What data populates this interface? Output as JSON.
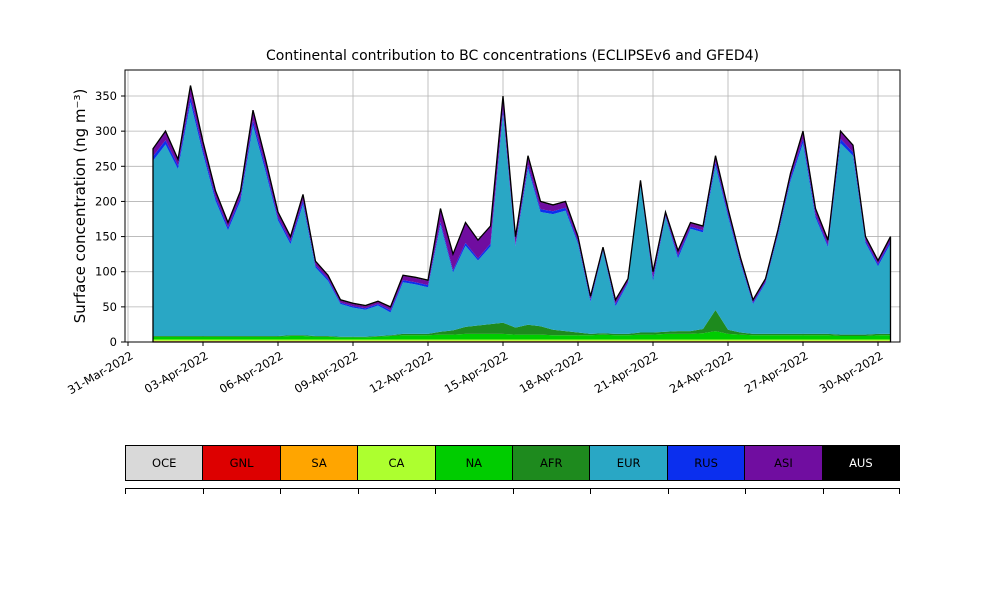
{
  "chart_data": {
    "type": "area",
    "stacked": true,
    "title": "Continental contribution to BC concentrations (ECLIPSEv6 and GFED4)",
    "ylabel": "Surface concentration (ng m⁻³)",
    "xlabel": "",
    "grid": true,
    "grid_color": "#b3b3b3",
    "legend_position": "bottom",
    "x_unit": "days since 31-Mar-2022",
    "x_range": [
      -0.12,
      30.88
    ],
    "y_range": [
      0,
      387
    ],
    "y_ticks": [
      0,
      50,
      100,
      150,
      200,
      250,
      300,
      350
    ],
    "x_tick_positions": [
      0,
      3,
      6,
      9,
      12,
      15,
      18,
      21,
      24,
      27,
      30
    ],
    "x_tick_labels": [
      "31-Mar-2022",
      "03-Apr-2022",
      "06-Apr-2022",
      "09-Apr-2022",
      "12-Apr-2022",
      "15-Apr-2022",
      "18-Apr-2022",
      "21-Apr-2022",
      "24-Apr-2022",
      "27-Apr-2022",
      "30-Apr-2022"
    ],
    "x": [
      1,
      1.5,
      2,
      2.5,
      3,
      3.5,
      4,
      4.5,
      5,
      5.5,
      6,
      6.5,
      7,
      7.5,
      8,
      8.5,
      9,
      9.5,
      10,
      10.5,
      11,
      11.5,
      12,
      12.5,
      13,
      13.5,
      14,
      14.5,
      15,
      15.5,
      16,
      16.5,
      17,
      17.5,
      18,
      18.5,
      19,
      19.5,
      20,
      20.5,
      21,
      21.5,
      22,
      22.5,
      23,
      23.5,
      24,
      24.5,
      25,
      25.5,
      26,
      26.5,
      27,
      27.5,
      28,
      28.5,
      29,
      29.5,
      30,
      30.5
    ],
    "series": [
      {
        "name": "OCE",
        "color": "#d9d9d9",
        "label_color": "#000000",
        "values": 0.8
      },
      {
        "name": "GNL",
        "color": "#dd0000",
        "label_color": "#000000",
        "values": 0.3
      },
      {
        "name": "SA",
        "color": "#ffa500",
        "label_color": "#000000",
        "values": 0.4
      },
      {
        "name": "CA",
        "color": "#adff2f",
        "label_color": "#000000",
        "values": 2
      },
      {
        "name": "NA",
        "color": "#00cc00",
        "label_color": "#000000",
        "values": [
          4,
          4,
          4,
          4,
          4,
          4,
          4,
          4,
          4,
          4,
          4,
          5,
          5,
          4,
          4,
          3,
          3,
          3,
          4,
          5,
          6,
          6,
          6,
          7,
          7,
          8,
          8,
          8,
          8,
          7,
          7,
          7,
          6,
          6,
          6,
          6,
          7,
          6,
          6,
          7,
          7,
          8,
          8,
          8,
          9,
          12,
          8,
          7,
          6,
          6,
          6,
          6,
          6,
          6,
          6,
          5,
          5,
          5,
          6,
          6
        ]
      },
      {
        "name": "AFR",
        "color": "#1e8a1e",
        "label_color": "#000000",
        "values": [
          1,
          1,
          1,
          1,
          1,
          1,
          1,
          1,
          1,
          1,
          1,
          1,
          1,
          1,
          1,
          1,
          1,
          1,
          1,
          1,
          2,
          2,
          2,
          4,
          6,
          10,
          12,
          14,
          16,
          10,
          14,
          12,
          8,
          6,
          4,
          2,
          2,
          2,
          2,
          3,
          3,
          3,
          4,
          4,
          6,
          30,
          6,
          3,
          2,
          2,
          2,
          2,
          2,
          2,
          2,
          2,
          2,
          2,
          2,
          2
        ]
      },
      {
        "name": "EUR",
        "color": "#29a7c5",
        "label_color": "#000000",
        "values": [
          249.5,
          272.5,
          237.5,
          332.5,
          259.5,
          192.5,
          150.5,
          192.5,
          299.5,
          234.5,
          164.5,
          129.5,
          186.5,
          97.5,
          78.5,
          46.5,
          41.5,
          38.5,
          43.5,
          32.5,
          73.5,
          70.5,
          66.5,
          152.5,
          82.5,
          115.5,
          92.5,
          110.5,
          297.5,
          115.5,
          222.5,
          162.5,
          164.5,
          171.5,
          126.5,
          45.5,
          116.5,
          39.5,
          72.5,
          209.5,
          73.5,
          163.5,
          103.5,
          145.5,
          137.5,
          205.5,
          161.5,
          98.5,
          42.5,
          72.5,
          140.5,
          217.5,
          271.5,
          165.5,
          123.5,
          272.5,
          254.5,
          130.5,
          96.5,
          128.5
        ]
      },
      {
        "name": "RUS",
        "color": "#0b2fee",
        "label_color": "#000000",
        "values": [
          6,
          6,
          5,
          8,
          6,
          5,
          4,
          5,
          7,
          6,
          4,
          4,
          5,
          3,
          3,
          2,
          2,
          2,
          2,
          3,
          3,
          3,
          3,
          4,
          3,
          4,
          3,
          4,
          6,
          3,
          5,
          4,
          4,
          4,
          3,
          3,
          2,
          3,
          2,
          2,
          4,
          2,
          4,
          3,
          3,
          5,
          4,
          3,
          2,
          2,
          3,
          4,
          6,
          4,
          3,
          6,
          5,
          3,
          3,
          4
        ]
      },
      {
        "name": "ASI",
        "color": "#700da0",
        "label_color": "#000000",
        "values": [
          10,
          12,
          8,
          15,
          10,
          8,
          6,
          8,
          14,
          10,
          7,
          6,
          8,
          5,
          4,
          3,
          3,
          3,
          3,
          4,
          6,
          6,
          6,
          18,
          22,
          28,
          25,
          24,
          18,
          10,
          12,
          10,
          8,
          8,
          6,
          4,
          3,
          5,
          3,
          4,
          8,
          4,
          6,
          5,
          5,
          8,
          6,
          4,
          3,
          3,
          4,
          6,
          10,
          8,
          6,
          10,
          9,
          5,
          4,
          5
        ]
      },
      {
        "name": "AUS",
        "color": "#000000",
        "label_color": "#ffffff",
        "values": 1
      }
    ]
  }
}
